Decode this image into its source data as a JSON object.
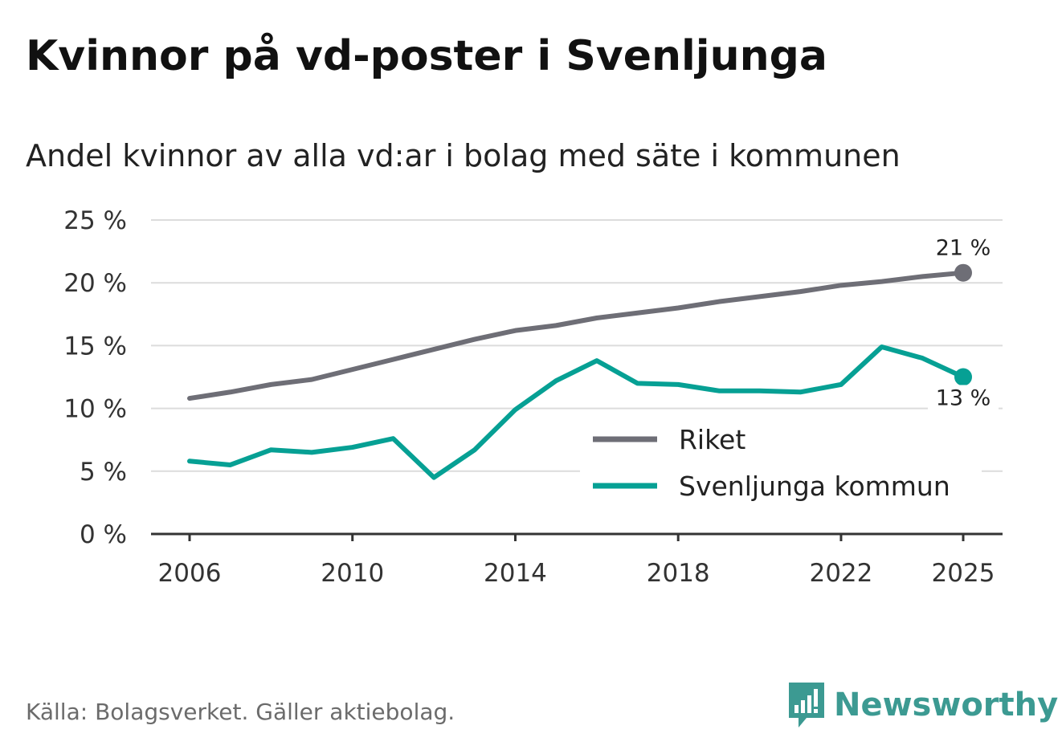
{
  "title": "Kvinnor på vd-poster i Svenljunga",
  "subtitle": "Andel kvinnor av alla vd:ar i bolag med säte i kommunen",
  "source": "Källa: Bolagsverket. Gäller aktiebolag.",
  "brand": {
    "name": "Newsworthy",
    "logo_icon": "newsworthy-bar-chart-icon",
    "color": "#3c9a92"
  },
  "chart_data": {
    "type": "line",
    "x": [
      2006,
      2007,
      2008,
      2009,
      2010,
      2011,
      2012,
      2013,
      2014,
      2015,
      2016,
      2017,
      2018,
      2019,
      2020,
      2021,
      2022,
      2023,
      2024,
      2025
    ],
    "x_ticks": [
      2006,
      2010,
      2014,
      2018,
      2022,
      2025
    ],
    "x_tick_labels": [
      "2006",
      "2010",
      "2014",
      "2018",
      "2022",
      "2025"
    ],
    "y_ticks": [
      0,
      5,
      10,
      15,
      20,
      25
    ],
    "y_tick_labels": [
      "0 %",
      "5 %",
      "10 %",
      "15 %",
      "20 %",
      "25 %"
    ],
    "ylim": [
      0,
      25
    ],
    "xlim": [
      2006,
      2025
    ],
    "grid": true,
    "legend_position": "bottom-right",
    "series": [
      {
        "name": "Riket",
        "color": "#6e6e76",
        "values": [
          10.8,
          11.3,
          11.9,
          12.3,
          13.1,
          13.9,
          14.7,
          15.5,
          16.2,
          16.6,
          17.2,
          17.6,
          18.0,
          18.5,
          18.9,
          19.3,
          19.8,
          20.1,
          20.5,
          20.8
        ],
        "end_label": "21 %"
      },
      {
        "name": "Svenljunga kommun",
        "color": "#06a094",
        "values": [
          5.8,
          5.5,
          6.7,
          6.5,
          6.9,
          7.6,
          4.5,
          6.7,
          9.9,
          12.2,
          13.8,
          12.0,
          11.9,
          11.4,
          11.4,
          11.3,
          11.9,
          14.9,
          14.0,
          12.5
        ],
        "end_label": "13 %"
      }
    ]
  }
}
